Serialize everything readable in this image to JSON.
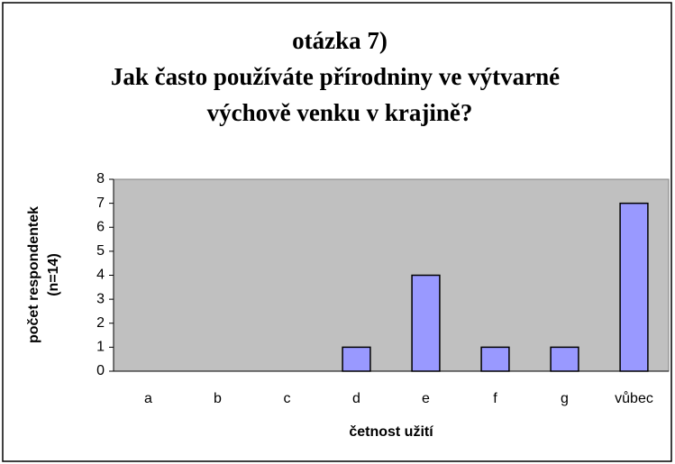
{
  "chart_data": {
    "type": "bar",
    "title": [
      "otázka 7)",
      "Jak často používáte přírodniny ve výtvarné",
      "výchově venku v krajině?"
    ],
    "ylabel": [
      "počet respondentek",
      "(n=14)"
    ],
    "xlabel": "četnost užití",
    "categories": [
      "a",
      "b",
      "c",
      "d",
      "e",
      "f",
      "g",
      "vůbec"
    ],
    "values": [
      0,
      0,
      0,
      1,
      4,
      1,
      1,
      7
    ],
    "color": "#9999ff",
    "ylim": [
      0,
      8
    ],
    "yticks": [
      0,
      1,
      2,
      3,
      4,
      5,
      6,
      7,
      8
    ],
    "grid": false
  }
}
